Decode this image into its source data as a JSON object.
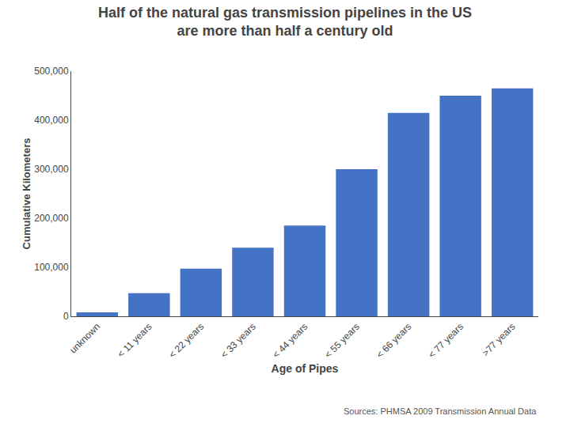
{
  "chart_data": {
    "type": "bar",
    "title": "Half of the natural gas transmission pipelines in the US",
    "subtitle": "are more than half a century old",
    "categories": [
      "unknown",
      "< 11 years",
      "< 22 years",
      "< 33 years",
      "< 44 years",
      "< 55 years",
      "< 66 years",
      "< 77 years",
      ">77 years"
    ],
    "values": [
      8000,
      47000,
      97000,
      140000,
      185000,
      300000,
      415000,
      450000,
      465000
    ],
    "color": "#4472c4",
    "xlabel": "Age of Pipes",
    "ylabel": "Cumulative Kilometers",
    "ylim": [
      0,
      500000
    ],
    "yticks": [
      0,
      {
        "value": 100000,
        "label": "100,000"
      },
      {
        "value": 200000,
        "label": "200,000"
      },
      {
        "value": 300000,
        "label": "300,000"
      },
      {
        "value": 400000,
        "label": "400,000"
      },
      {
        "value": 500000,
        "label": "500,000"
      }
    ],
    "grid": false,
    "annotations": [
      "Sources: PHMSA 2009 Transmission Annual Data"
    ]
  }
}
